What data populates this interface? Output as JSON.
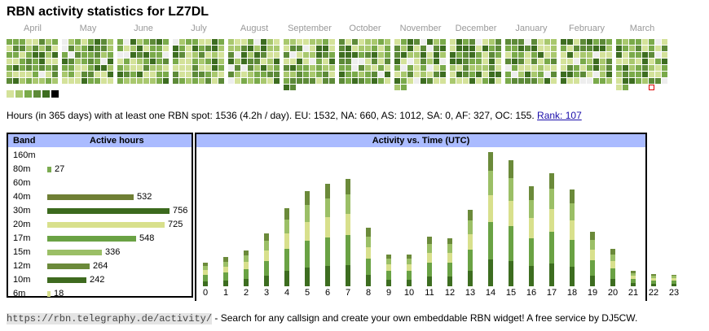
{
  "title": "RBN activity statistics for LZ7DL",
  "months": [
    "April",
    "May",
    "June",
    "July",
    "August",
    "September",
    "October",
    "November",
    "December",
    "January",
    "February",
    "March"
  ],
  "legend_colors": [
    "#d4e29a",
    "#a9c86e",
    "#7aaa4a",
    "#5d8a38",
    "#3d6d20",
    "#000000"
  ],
  "summary": {
    "text": "Hours (in 365 days) with at least one RBN spot: 1536 (4.2h / day). EU: 1532, NA: 660, AS: 1012, SA: 0, AF: 327, OC: 155.",
    "rank_link": "Rank: 107"
  },
  "band_table": {
    "header_band": "Band",
    "header_hours": "Active hours",
    "rows": [
      {
        "band": "160m",
        "hours": null,
        "color": "#6f8a3c"
      },
      {
        "band": "80m",
        "hours": 27,
        "color": "#7bab50"
      },
      {
        "band": "60m",
        "hours": null,
        "color": "#6f8a3c"
      },
      {
        "band": "40m",
        "hours": 532,
        "color": "#6f7f35"
      },
      {
        "band": "30m",
        "hours": 756,
        "color": "#3c6a1e"
      },
      {
        "band": "20m",
        "hours": 725,
        "color": "#d8e08c"
      },
      {
        "band": "17m",
        "hours": 548,
        "color": "#6aa244"
      },
      {
        "band": "15m",
        "hours": 336,
        "color": "#9bbf66"
      },
      {
        "band": "12m",
        "hours": 264,
        "color": "#6b8a3a"
      },
      {
        "band": "10m",
        "hours": 242,
        "color": "#3e6a1f"
      },
      {
        "band": "6m",
        "hours": 18,
        "color": "#d8e08c"
      }
    ]
  },
  "activity_chart": {
    "header": "Activity vs. Time (UTC)",
    "hours": [
      "0",
      "1",
      "2",
      "3",
      "4",
      "5",
      "6",
      "7",
      "8",
      "9",
      "10",
      "11",
      "12",
      "13",
      "14",
      "15",
      "16",
      "17",
      "18",
      "19",
      "20",
      "21",
      "22",
      "23"
    ],
    "totals": [
      27,
      34,
      41,
      61,
      90,
      110,
      118,
      124,
      68,
      37,
      37,
      57,
      55,
      88,
      155,
      146,
      116,
      131,
      112,
      63,
      43,
      18,
      14,
      13
    ]
  },
  "footer": {
    "url": "https://rbn.telegraphy.de/activity/",
    "text": " - Search for any callsign and create your own embeddable RBN widget! A free service by DJ5CW."
  }
}
